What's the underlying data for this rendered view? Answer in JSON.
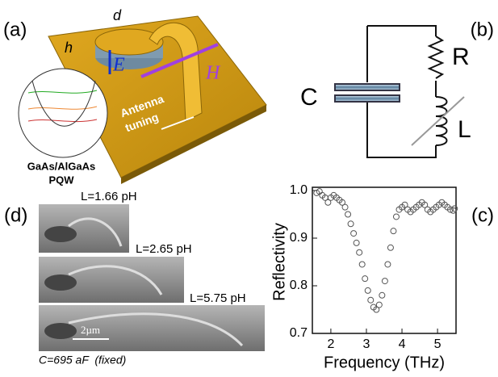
{
  "panel_a": {
    "label": "(a)",
    "d": "d",
    "h": "h",
    "E": "E",
    "H": "H",
    "antenna": "Antenna",
    "tuning": "tuning",
    "material": "GaAs/AlGaAs",
    "pqw": "PQW"
  },
  "panel_b": {
    "label": "(b)",
    "C": "C",
    "R": "R",
    "L": "L"
  },
  "panel_d": {
    "label": "(d)",
    "inductances": [
      "L=1.66 pH",
      "L=2.65 pH",
      "L=5.75 pH"
    ],
    "scale": "2µm",
    "caption": "C=695 aF  (fixed)"
  },
  "chart_data": {
    "type": "scatter",
    "panel_label": "(c)",
    "x_label": "Frequency (THz)",
    "y_label": "Reflectivity",
    "color": "#555555",
    "x": [
      1.6,
      1.68,
      1.76,
      1.84,
      1.92,
      2.0,
      2.08,
      2.16,
      2.24,
      2.32,
      2.4,
      2.48,
      2.56,
      2.64,
      2.72,
      2.8,
      2.88,
      2.96,
      3.04,
      3.12,
      3.2,
      3.28,
      3.36,
      3.44,
      3.52,
      3.6,
      3.68,
      3.76,
      3.84,
      3.92,
      4.0,
      4.08,
      4.16,
      4.24,
      4.32,
      4.4,
      4.48,
      4.56,
      4.64,
      4.72,
      4.8,
      4.88,
      4.96,
      5.04,
      5.12,
      5.2,
      5.28,
      5.36,
      5.44,
      5.48
    ],
    "values": [
      0.995,
      0.998,
      0.99,
      0.985,
      0.975,
      0.985,
      0.99,
      0.985,
      0.98,
      0.975,
      0.965,
      0.95,
      0.93,
      0.91,
      0.89,
      0.87,
      0.845,
      0.815,
      0.79,
      0.77,
      0.755,
      0.75,
      0.76,
      0.78,
      0.81,
      0.845,
      0.88,
      0.915,
      0.945,
      0.96,
      0.965,
      0.97,
      0.96,
      0.955,
      0.96,
      0.965,
      0.97,
      0.975,
      0.97,
      0.96,
      0.955,
      0.96,
      0.965,
      0.97,
      0.975,
      0.97,
      0.965,
      0.96,
      0.958,
      0.962
    ],
    "xlim": [
      1.48,
      5.52
    ],
    "ylim": [
      0.7,
      1.0
    ],
    "xticks": [
      2,
      3,
      4,
      5
    ],
    "yticks": [
      0.7,
      0.8,
      0.9,
      {
        "value": 1,
        "label": "1.0"
      }
    ]
  }
}
